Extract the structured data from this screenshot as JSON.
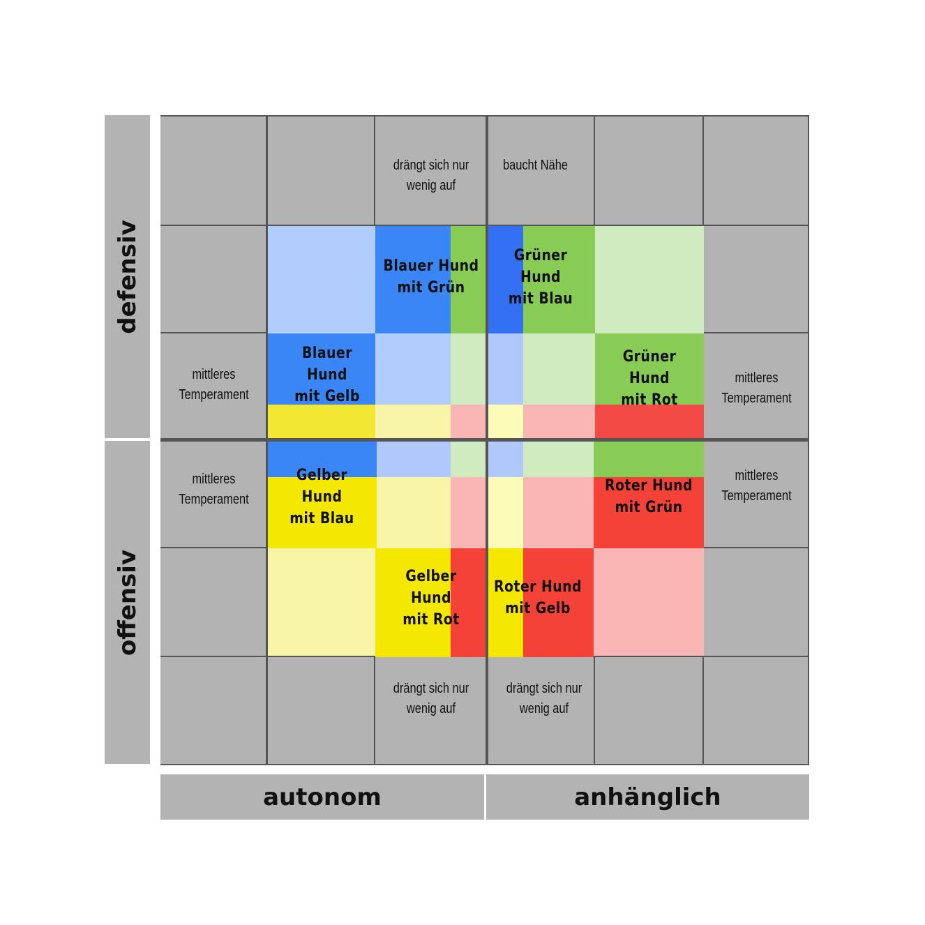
{
  "axes": {
    "vertical": [
      {
        "label": "defensiv"
      },
      {
        "label": "offensiv"
      }
    ],
    "horizontal": [
      {
        "label": "autonom"
      },
      {
        "label": "anhänglich"
      }
    ]
  },
  "cell_texts": [
    {
      "id": "top-left-inner",
      "text": "drängt sich nur\nwenig auf"
    },
    {
      "id": "top-right-inner",
      "text": "baucht  Nähe"
    },
    {
      "id": "left-upper-mid",
      "text": "mittleres\nTemperament"
    },
    {
      "id": "right-upper-mid",
      "text": "mittleres\nTemperament"
    },
    {
      "id": "left-lower-mid",
      "text": "mittleres\nTemperament"
    },
    {
      "id": "right-lower-mid",
      "text": "mittleres\nTemperament"
    },
    {
      "id": "bottom-left-inner",
      "text": "drängt sich nur\nwenig auf"
    },
    {
      "id": "bottom-right-inner",
      "text": "drängt sich nur\nwenig auf"
    }
  ],
  "dogs": [
    {
      "id": "blue-green",
      "label": "Blauer Hund\nmit Grün",
      "primary": "blue",
      "secondary": "green"
    },
    {
      "id": "green-blue",
      "label": "Grüner Hund\nmit Blau",
      "primary": "green",
      "secondary": "blue"
    },
    {
      "id": "blue-yellow",
      "label": "Blauer Hund\nmit Gelb",
      "primary": "blue",
      "secondary": "yellow"
    },
    {
      "id": "green-red",
      "label": "Grüner Hund\nmit Rot",
      "primary": "green",
      "secondary": "red"
    },
    {
      "id": "yellow-blue",
      "label": "Gelber Hund\nmit Blau",
      "primary": "yellow",
      "secondary": "blue"
    },
    {
      "id": "red-green",
      "label": "Roter Hund\nmit Grün",
      "primary": "red",
      "secondary": "green"
    },
    {
      "id": "yellow-red",
      "label": "Gelber Hund\nmit Rot",
      "primary": "yellow",
      "secondary": "red"
    },
    {
      "id": "red-yellow",
      "label": "Roter Hund\nmit Gelb",
      "primary": "red",
      "secondary": "yellow"
    }
  ],
  "colors": {
    "grid_gray": "#b3b3b3",
    "grid_line": "#555555",
    "blue": "#3b86f7",
    "blue_dark": "#3370f3",
    "blue_light": "#b0cdfd",
    "blue_pale": "#b0c8fb",
    "green": "#88cc55",
    "green_light": "#d0ebbf",
    "yellow": "#f5e800",
    "yellow_mid": "#f2e733",
    "yellow_light": "#f8f4a8",
    "yellow_pale": "#fcfcb8",
    "red": "#f44238",
    "red_mid": "#f44a46",
    "red_light": "#f9b6b5"
  }
}
